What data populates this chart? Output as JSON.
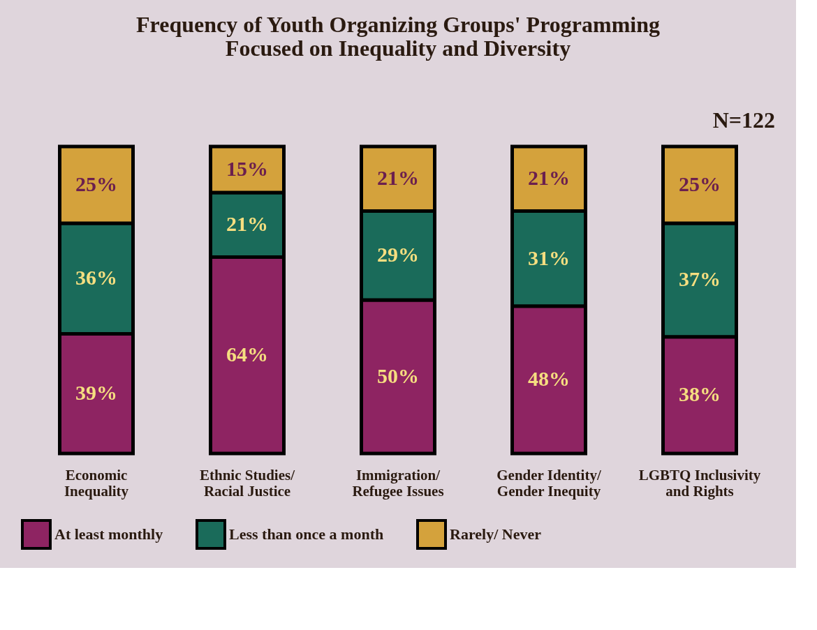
{
  "chart_data": {
    "type": "bar",
    "stacked": true,
    "title": "Frequency of Youth Organizing Groups' Programming\nFocused on Inequality and Diversity",
    "categories": [
      "Economic\nInequality",
      "Ethnic Studies/\nRacial Justice",
      "Immigration/\nRefugee Issues",
      "Gender Identity/\nGender Inequity",
      "LGBTQ Inclusivity\nand Rights"
    ],
    "series": [
      {
        "name": "At least monthly",
        "color": "#8e2462",
        "values": [
          39,
          64,
          50,
          48,
          38
        ],
        "value_labels": [
          "39%",
          "64%",
          "50%",
          "48%",
          "38%"
        ]
      },
      {
        "name": "Less than once a month",
        "color": "#1a6b5a",
        "values": [
          36,
          21,
          29,
          31,
          37
        ],
        "value_labels": [
          "36%",
          "21%",
          "29%",
          "31%",
          "37%"
        ]
      },
      {
        "name": "Rarely/ Never",
        "color": "#d4a23c",
        "values": [
          25,
          15,
          21,
          21,
          25
        ],
        "value_labels": [
          "25%",
          "15%",
          "21%",
          "21%",
          "25%"
        ]
      }
    ],
    "annotations": [
      "N=122"
    ],
    "legend": "bottom"
  }
}
